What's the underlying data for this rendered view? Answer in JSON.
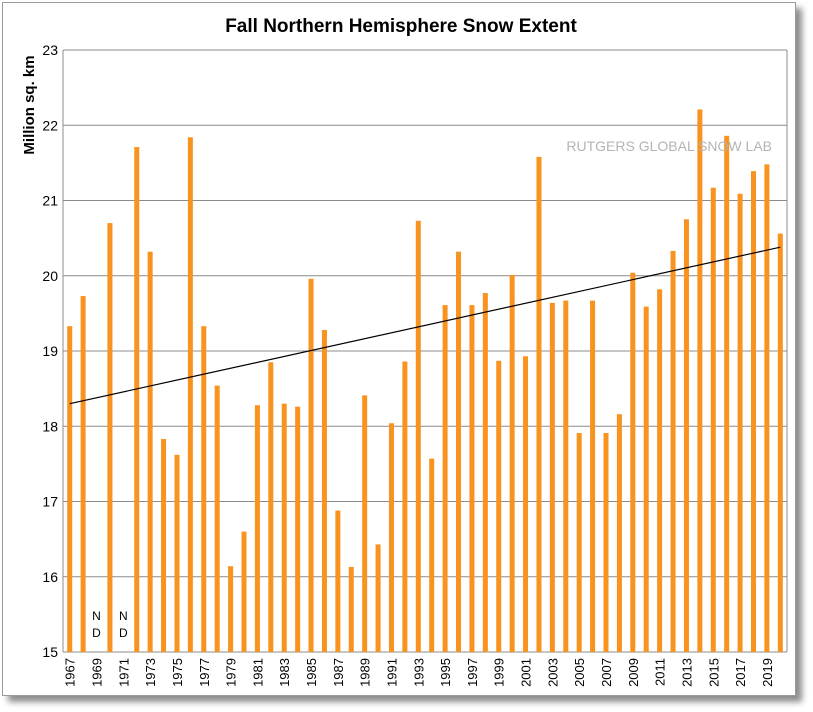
{
  "chart_data": {
    "type": "bar",
    "title": "Fall Northern Hemisphere Snow Extent",
    "ylabel": "Million sq. km",
    "xlabel": "",
    "watermark": "RUTGERS GLOBAL SNOW LAB",
    "ylim": [
      15,
      23
    ],
    "yticks": [
      "15",
      "16",
      "17",
      "18",
      "19",
      "20",
      "21",
      "22",
      "23"
    ],
    "grid": true,
    "bar_color": "#f7931e",
    "trendline": {
      "start": [
        1967,
        18.3
      ],
      "end": [
        2020,
        20.38
      ],
      "color": "#000000"
    },
    "no_data_label": "N\nD",
    "categories": [
      "1967",
      "1968",
      "1969",
      "1970",
      "1971",
      "1972",
      "1973",
      "1974",
      "1975",
      "1976",
      "1977",
      "1978",
      "1979",
      "1980",
      "1981",
      "1982",
      "1983",
      "1984",
      "1985",
      "1986",
      "1987",
      "1988",
      "1989",
      "1990",
      "1991",
      "1992",
      "1993",
      "1994",
      "1995",
      "1996",
      "1997",
      "1998",
      "1999",
      "2000",
      "2001",
      "2002",
      "2003",
      "2004",
      "2005",
      "2006",
      "2007",
      "2008",
      "2009",
      "2010",
      "2011",
      "2012",
      "2013",
      "2014",
      "2015",
      "2016",
      "2017",
      "2018",
      "2019",
      "2020"
    ],
    "xtick_labels": [
      "1967",
      "1969",
      "1971",
      "1973",
      "1975",
      "1977",
      "1979",
      "1981",
      "1983",
      "1985",
      "1987",
      "1989",
      "1991",
      "1993",
      "1995",
      "1997",
      "1999",
      "2001",
      "2003",
      "2005",
      "2007",
      "2009",
      "2011",
      "2013",
      "2015",
      "2017",
      "2019"
    ],
    "values": [
      19.33,
      19.73,
      null,
      20.7,
      null,
      21.71,
      20.32,
      17.83,
      17.62,
      21.84,
      19.33,
      18.54,
      16.14,
      16.6,
      18.28,
      18.85,
      18.3,
      18.26,
      19.96,
      19.28,
      16.88,
      16.13,
      18.41,
      16.43,
      18.04,
      18.86,
      20.73,
      17.57,
      19.61,
      20.32,
      19.61,
      19.77,
      18.87,
      20.01,
      18.93,
      21.58,
      19.64,
      19.67,
      17.91,
      19.67,
      17.91,
      18.16,
      20.04,
      19.59,
      19.82,
      20.33,
      20.75,
      22.21,
      21.17,
      21.86,
      21.09,
      21.39,
      21.48,
      20.56
    ]
  }
}
